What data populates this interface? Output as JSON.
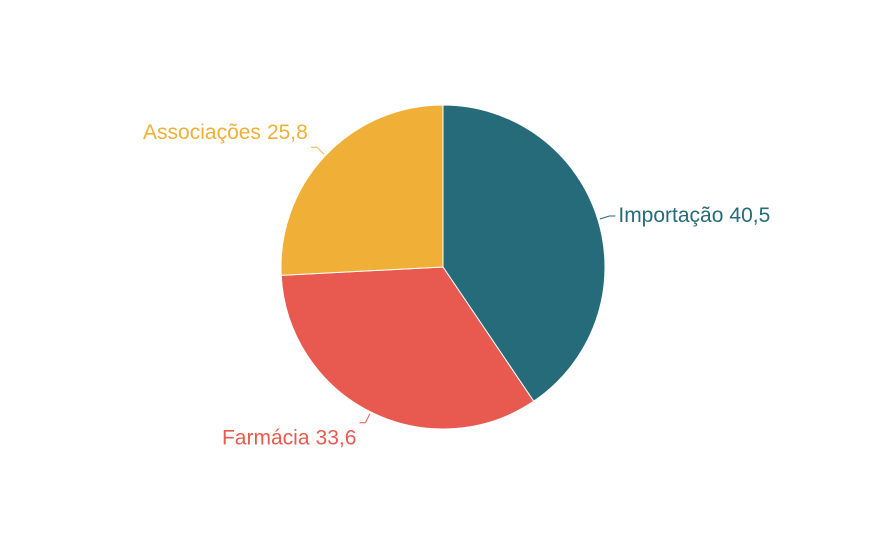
{
  "chart_data": {
    "type": "pie",
    "categories": [
      "Importação",
      "Farmácia",
      "Associações"
    ],
    "values": [
      40.5,
      33.6,
      25.8
    ],
    "value_labels": [
      "40,5",
      "33,6",
      "25,8"
    ],
    "colors": [
      "#266b79",
      "#e85a4f",
      "#f0b037"
    ]
  }
}
